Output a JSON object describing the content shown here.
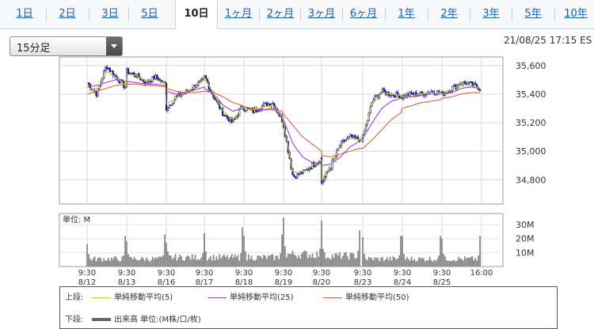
{
  "tabs": [
    {
      "label": "1日",
      "active": false
    },
    {
      "label": "2日",
      "active": false
    },
    {
      "label": "3日",
      "active": false
    },
    {
      "label": "5日",
      "active": false
    },
    {
      "label": "10日",
      "active": true
    },
    {
      "label": "1ヶ月",
      "active": false
    },
    {
      "label": "2ヶ月",
      "active": false
    },
    {
      "label": "3ヶ月",
      "active": false
    },
    {
      "label": "6ヶ月",
      "active": false
    },
    {
      "label": "1年",
      "active": false
    },
    {
      "label": "2年",
      "active": false
    },
    {
      "label": "3年",
      "active": false
    },
    {
      "label": "5年",
      "active": false
    },
    {
      "label": "10年",
      "active": false
    }
  ],
  "interval_select": {
    "value": "15分足",
    "icon": "chevron-down-icon"
  },
  "timestamp": "21/08/25 17:15 ES",
  "colors": {
    "sma5": "#b8d020",
    "sma25": "#9b3fd8",
    "sma50": "#e06040",
    "volume": "#8a8a8a",
    "candle": "#1a1a80"
  },
  "legend": {
    "upper_label": "上段:",
    "lower_label": "下段:",
    "sma5": "単純移動平均(5)",
    "sma25": "単純移動平均(25)",
    "sma50": "単純移動平均(50)",
    "volume": "出来高 単位:(M株/口/枚)"
  },
  "chart_data": [
    {
      "type": "line",
      "description_series": [
        "price",
        "sma5",
        "sma25",
        "sma50"
      ],
      "x_tick_labels": [
        {
          "time": "9:30",
          "date": "8/12"
        },
        {
          "time": "9:30",
          "date": "8/13"
        },
        {
          "time": "9:30",
          "date": "8/16"
        },
        {
          "time": "9:30",
          "date": "8/17"
        },
        {
          "time": "9:30",
          "date": "8/18"
        },
        {
          "time": "9:30",
          "date": "8/19"
        },
        {
          "time": "9:30",
          "date": "8/20"
        },
        {
          "time": "9:30",
          "date": "8/23"
        },
        {
          "time": "9:30",
          "date": "8/24"
        },
        {
          "time": "9:30",
          "date": "8/25"
        },
        {
          "time": "16:00",
          "date": ""
        }
      ],
      "y_ticks": [
        35600,
        35400,
        35200,
        35000,
        34800
      ],
      "ylim": [
        34630,
        35660
      ],
      "grid": true,
      "session_anchors": {
        "price": [
          [
            35480,
            35400,
            35600,
            35520,
            35450
          ],
          [
            35560,
            35530,
            35480,
            35520,
            35470
          ],
          [
            35300,
            35380,
            35410,
            35460,
            35500
          ],
          [
            35520,
            35380,
            35260,
            35200,
            35320
          ],
          [
            35300,
            35280,
            35320,
            35340,
            35220
          ],
          [
            35180,
            34820,
            34850,
            34900,
            34950
          ],
          [
            34780,
            34900,
            35050,
            35100,
            35080
          ],
          [
            35100,
            35350,
            35420,
            35400,
            35390
          ],
          [
            35380,
            35400,
            35400,
            35420,
            35410
          ],
          [
            35400,
            35440,
            35480,
            35470,
            35440
          ]
        ],
        "sma5": [
          [
            35450,
            35420,
            35560,
            35520,
            35460
          ],
          [
            35540,
            35530,
            35490,
            35500,
            35480
          ],
          [
            35330,
            35370,
            35410,
            35450,
            35500
          ],
          [
            35520,
            35400,
            35280,
            35220,
            35310
          ],
          [
            35300,
            35290,
            35310,
            35320,
            35240
          ],
          [
            35200,
            34850,
            34860,
            34900,
            34940
          ],
          [
            34800,
            34900,
            35040,
            35090,
            35080
          ],
          [
            35110,
            35330,
            35410,
            35400,
            35390
          ],
          [
            35380,
            35390,
            35400,
            35410,
            35410
          ],
          [
            35400,
            35430,
            35470,
            35460,
            35440
          ]
        ],
        "sma25": [
          [
            35450,
            35460,
            35480,
            35500,
            35490
          ],
          [
            35490,
            35480,
            35470,
            35470,
            35460
          ],
          [
            35420,
            35400,
            35410,
            35430,
            35450
          ],
          [
            35440,
            35400,
            35320,
            35280,
            35300
          ],
          [
            35300,
            35290,
            35290,
            35300,
            35260
          ],
          [
            35220,
            35050,
            34960,
            34920,
            34920
          ],
          [
            34900,
            34910,
            34960,
            35030,
            35070
          ],
          [
            35090,
            35200,
            35300,
            35350,
            35370
          ],
          [
            35380,
            35380,
            35390,
            35400,
            35400
          ],
          [
            35400,
            35410,
            35440,
            35450,
            35440
          ]
        ],
        "sma50": [
          [
            35400,
            35420,
            35440,
            35460,
            35470
          ],
          [
            35470,
            35470,
            35460,
            35460,
            35450
          ],
          [
            35440,
            35420,
            35410,
            35410,
            35420
          ],
          [
            35420,
            35410,
            35380,
            35340,
            35320
          ],
          [
            35310,
            35300,
            35290,
            35290,
            35280
          ],
          [
            35260,
            35180,
            35100,
            35050,
            35000
          ],
          [
            34970,
            34960,
            34980,
            35000,
            35020
          ],
          [
            35020,
            35080,
            35150,
            35220,
            35270
          ],
          [
            35300,
            35320,
            35340,
            35350,
            35360
          ],
          [
            35370,
            35380,
            35400,
            35410,
            35410
          ]
        ]
      }
    },
    {
      "type": "bar",
      "unit_label": "単位: M",
      "y_tick_labels": [
        "30M",
        "20M",
        "10M"
      ],
      "y_ticks": [
        30,
        20,
        10
      ],
      "ylim": [
        0,
        38
      ],
      "session_volume": {
        "open_spike": [
          16,
          18,
          17,
          24,
          22,
          35,
          24,
          21,
          22,
          20
        ],
        "close_spike": [
          22,
          23,
          24,
          28,
          23,
          33,
          26,
          22,
          22,
          22
        ],
        "typical": [
          5,
          5,
          6,
          6,
          6,
          8,
          7,
          5,
          5,
          5
        ]
      }
    }
  ]
}
